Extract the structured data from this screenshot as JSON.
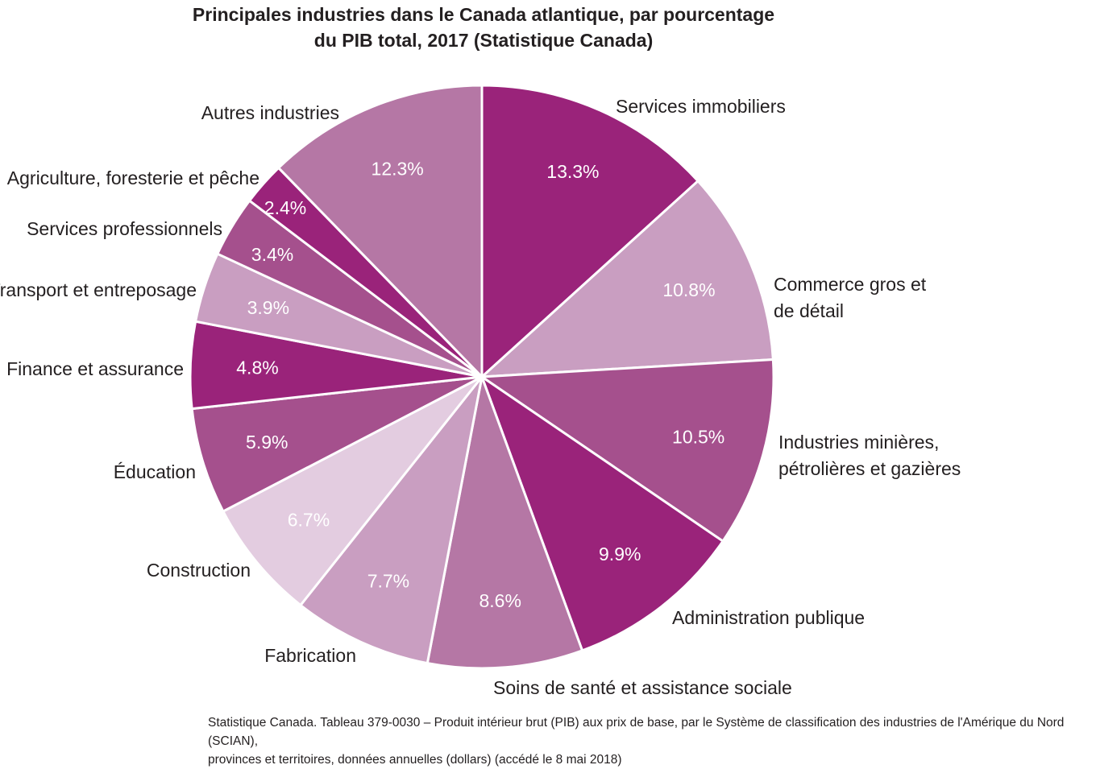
{
  "title_lines": [
    "Principales industries dans le Canada atlantique, par pourcentage",
    "du PIB total, 2017 (Statistique Canada)"
  ],
  "source_lines": [
    "Statistique Canada. Tableau 379-0030 – Produit intérieur brut (PIB) aux prix de base, par le Système de classification des industries de l'Amérique du Nord (SCIAN),",
    "provinces et territoires, données annuelles (dollars) (accédé le 8 mai 2018)"
  ],
  "chart_data": {
    "type": "pie",
    "title": "Principales industries dans le Canada atlantique, par pourcentage du PIB total, 2017 (Statistique Canada)",
    "unit": "%",
    "slices": [
      {
        "label_lines": [
          "Services immobiliers"
        ],
        "value": 13.3,
        "value_label": "13.3%",
        "color": "#9a237a"
      },
      {
        "label_lines": [
          "Commerce gros et",
          "de détail"
        ],
        "value": 10.8,
        "value_label": "10.8%",
        "color": "#c99ec1"
      },
      {
        "label_lines": [
          "Industries minières,",
          "pétrolières et gazières"
        ],
        "value": 10.5,
        "value_label": "10.5%",
        "color": "#a5508d"
      },
      {
        "label_lines": [
          "Administration publique"
        ],
        "value": 9.9,
        "value_label": "9.9%",
        "color": "#9a237a"
      },
      {
        "label_lines": [
          "Soins de santé et assistance sociale"
        ],
        "value": 8.6,
        "value_label": "8.6%",
        "color": "#b577a5"
      },
      {
        "label_lines": [
          "Fabrication"
        ],
        "value": 7.7,
        "value_label": "7.7%",
        "color": "#c99ec1"
      },
      {
        "label_lines": [
          "Construction"
        ],
        "value": 6.7,
        "value_label": "6.7%",
        "color": "#e3cce0"
      },
      {
        "label_lines": [
          "Éducation"
        ],
        "value": 5.9,
        "value_label": "5.9%",
        "color": "#a5508d"
      },
      {
        "label_lines": [
          "Finance et assurance"
        ],
        "value": 4.8,
        "value_label": "4.8%",
        "color": "#9a237a"
      },
      {
        "label_lines": [
          "Transport et entreposage"
        ],
        "value": 3.9,
        "value_label": "3.9%",
        "color": "#c99ec1"
      },
      {
        "label_lines": [
          "Services professionnels"
        ],
        "value": 3.4,
        "value_label": "3.4%",
        "color": "#a5508d"
      },
      {
        "label_lines": [
          "Agriculture, foresterie et pêche"
        ],
        "value": 2.4,
        "value_label": "2.4%",
        "color": "#9a237a"
      },
      {
        "label_lines": [
          "Autres industries"
        ],
        "value": 12.3,
        "value_label": "12.3%",
        "color": "#b577a5"
      }
    ]
  }
}
